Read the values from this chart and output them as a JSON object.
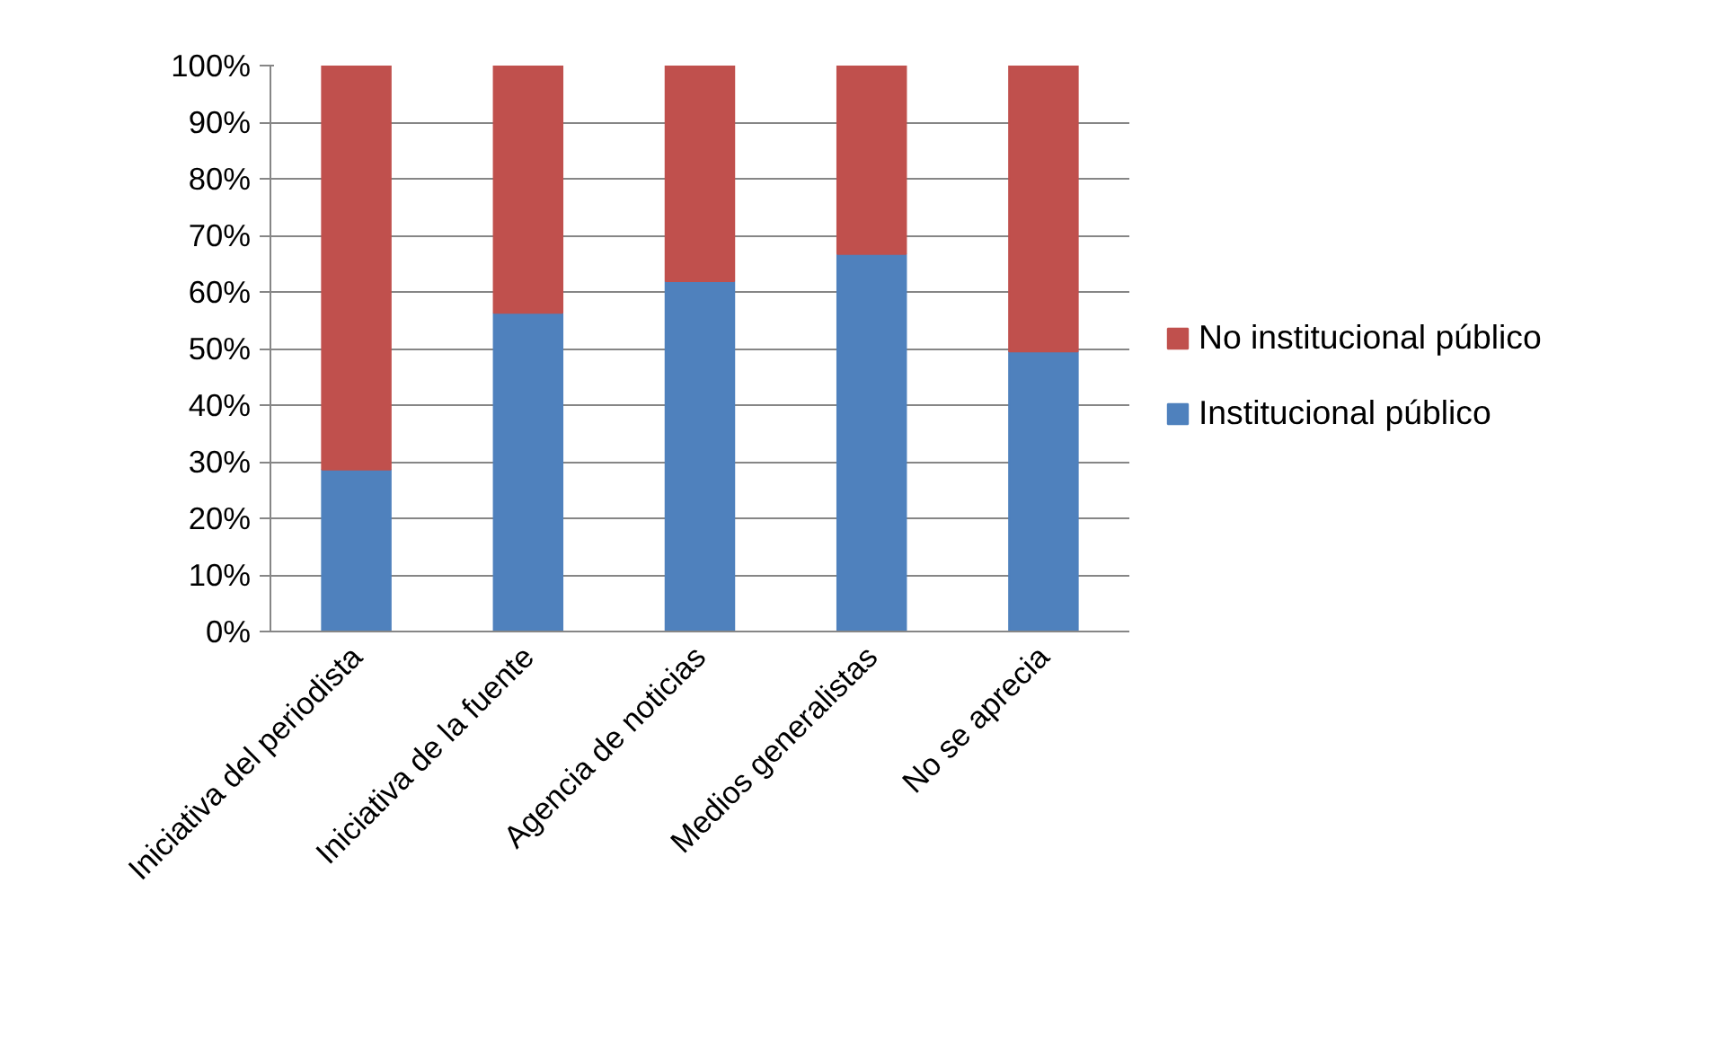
{
  "chart_data": {
    "type": "bar",
    "stacked": true,
    "categories": [
      "Iniciativa del periodista",
      "Iniciativa de la fuente",
      "Agencia de noticias",
      "Medios generalistas",
      "No se aprecia"
    ],
    "series": [
      {
        "name": "Institucional público",
        "color": "#4f81bd",
        "values": [
          28.6,
          56.3,
          61.9,
          66.7,
          49.5
        ]
      },
      {
        "name": "No institucional público",
        "color": "#c0504d",
        "values": [
          71.4,
          43.7,
          38.1,
          33.3,
          50.5
        ]
      }
    ],
    "ylim": [
      0,
      100
    ],
    "yticks": [
      {
        "value": 0,
        "label": "0%"
      },
      {
        "value": 10,
        "label": "10%"
      },
      {
        "value": 20,
        "label": "20%"
      },
      {
        "value": 30,
        "label": "30%"
      },
      {
        "value": 40,
        "label": "40%"
      },
      {
        "value": 50,
        "label": "50%"
      },
      {
        "value": 60,
        "label": "60%"
      },
      {
        "value": 70,
        "label": "70%"
      },
      {
        "value": 80,
        "label": "80%"
      },
      {
        "value": 90,
        "label": "90%"
      },
      {
        "value": 100,
        "label": "100%"
      }
    ],
    "grid": "y",
    "legend": "right"
  }
}
